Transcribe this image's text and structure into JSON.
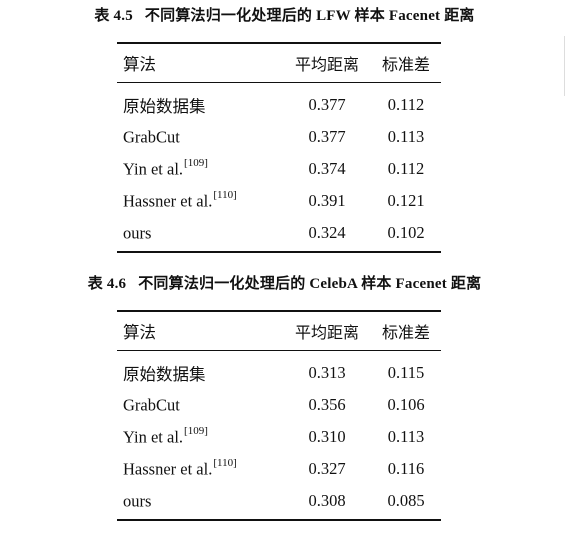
{
  "table1": {
    "caption_num": "表 4.5",
    "caption_text": "不同算法归一化处理后的 LFW 样本 Facenet 距离",
    "headers": [
      "算法",
      "平均距离",
      "标准差"
    ],
    "rows": [
      {
        "name": "原始数据集",
        "ref": "",
        "mean": "0.377",
        "std": "0.112"
      },
      {
        "name": "GrabCut",
        "ref": "",
        "mean": "0.377",
        "std": "0.113"
      },
      {
        "name": "Yin et al.",
        "ref": "[109]",
        "mean": "0.374",
        "std": "0.112"
      },
      {
        "name": "Hassner et al.",
        "ref": "[110]",
        "mean": "0.391",
        "std": "0.121"
      },
      {
        "name": "ours",
        "ref": "",
        "mean": "0.324",
        "std": "0.102"
      }
    ]
  },
  "table2": {
    "caption_num": "表 4.6",
    "caption_text": "不同算法归一化处理后的 CelebA 样本 Facenet 距离",
    "headers": [
      "算法",
      "平均距离",
      "标准差"
    ],
    "rows": [
      {
        "name": "原始数据集",
        "ref": "",
        "mean": "0.313",
        "std": "0.115"
      },
      {
        "name": "GrabCut",
        "ref": "",
        "mean": "0.356",
        "std": "0.106"
      },
      {
        "name": "Yin et al.",
        "ref": "[109]",
        "mean": "0.310",
        "std": "0.113"
      },
      {
        "name": "Hassner et al.",
        "ref": "[110]",
        "mean": "0.327",
        "std": "0.116"
      },
      {
        "name": "ours",
        "ref": "",
        "mean": "0.308",
        "std": "0.085"
      }
    ]
  }
}
